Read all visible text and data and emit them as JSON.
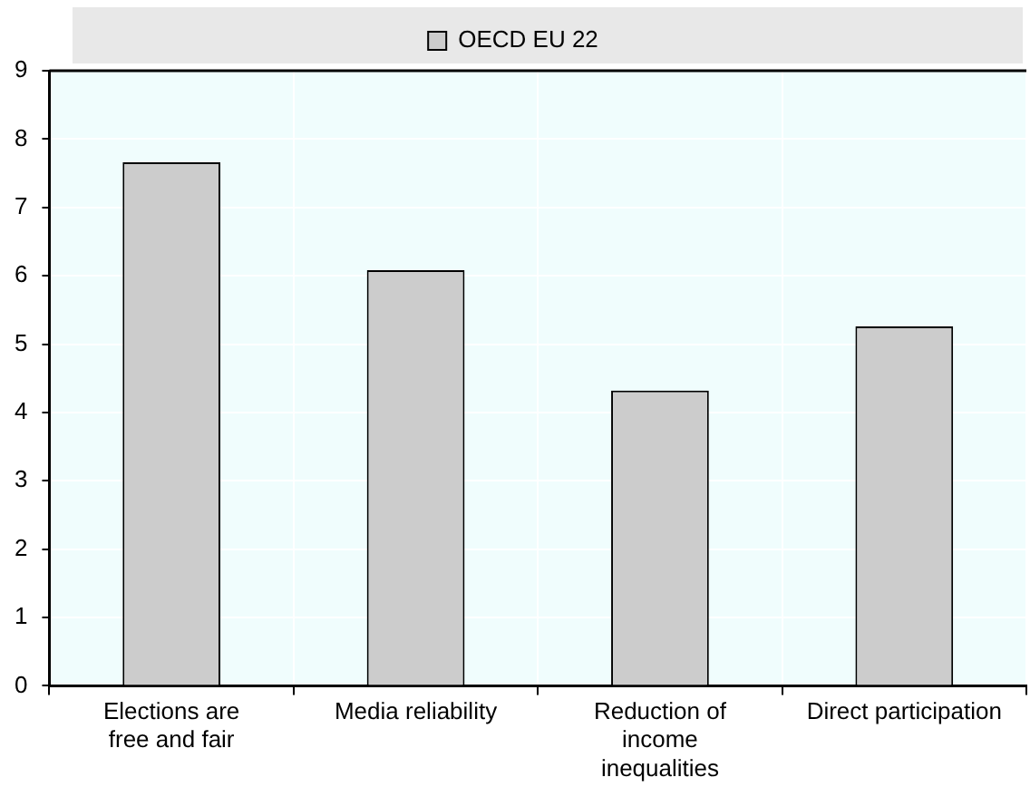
{
  "chart_data": {
    "type": "bar",
    "categories": [
      "Elections are free and fair",
      "Media reliability",
      "Reduction of income inequalities",
      "Direct participation"
    ],
    "series": [
      {
        "name": "OECD EU 22",
        "color": "#cccccc",
        "values": [
          7.66,
          6.08,
          4.32,
          5.26
        ]
      }
    ],
    "ylim": [
      0,
      9
    ],
    "yticks": [
      0,
      1,
      2,
      3,
      4,
      5,
      6,
      7,
      8,
      9
    ],
    "grid": true,
    "legend": "top"
  }
}
